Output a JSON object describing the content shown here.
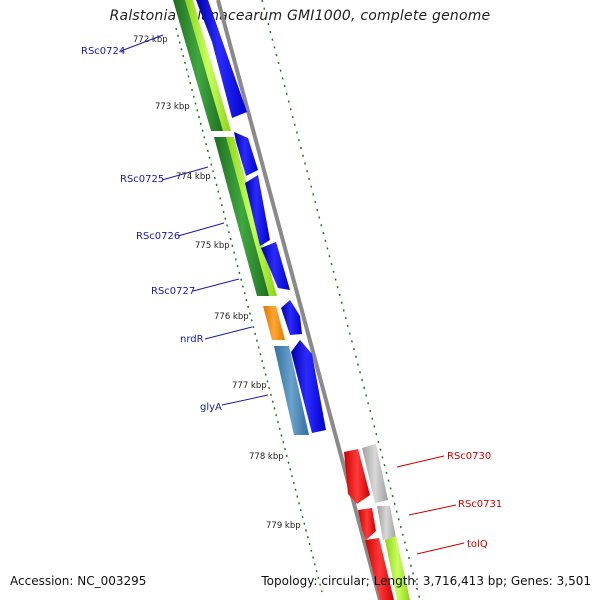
{
  "header": {
    "title": "Ralstonia solanacearum GMI1000, complete genome"
  },
  "footer": {
    "accession": "Accession: NC_003295",
    "summary": "Topology: circular; Length: 3,716,413 bp; Genes: 3,501"
  },
  "ruler": {
    "ticks": [
      "772 kbp",
      "773 kbp",
      "774 kbp",
      "775 kbp",
      "776 kbp",
      "777 kbp",
      "778 kbp",
      "779 kbp"
    ]
  },
  "genes": {
    "forward": [
      "RSc0724",
      "RSc0725",
      "RSc0726",
      "RSc0727",
      "nrdR",
      "glyA"
    ],
    "reverse": [
      "RSc0730",
      "RSc0731",
      "tolQ"
    ]
  },
  "colors": {
    "forward_label": "#1a1aa8",
    "reverse_label": "#cc0000",
    "cds": "#0000ff",
    "gene_green": "#2e8b2e",
    "gene_lime": "#a6e62c",
    "gene_orange": "#ff8c00",
    "gene_steel": "#4682b4",
    "gene_red": "#ff0000",
    "gene_gray": "#bdbdbd",
    "backbone": "#8a8a8a",
    "ruler": "#1a7a1a"
  }
}
